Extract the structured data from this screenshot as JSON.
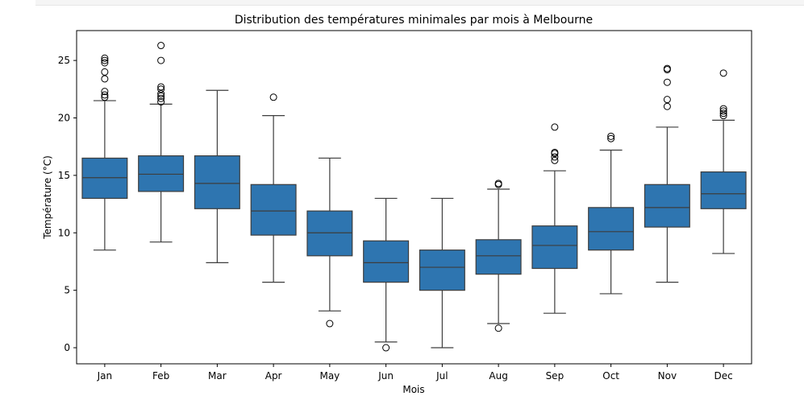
{
  "chart_data": {
    "type": "boxplot",
    "title": "Distribution des températures minimales par mois à Melbourne",
    "xlabel": "Mois",
    "ylabel": "Température (°C)",
    "ylim": [
      -1.4,
      27.6
    ],
    "yticks": [
      0,
      5,
      10,
      15,
      20,
      25
    ],
    "grid": false,
    "box_color": "#2e75b0",
    "categories": [
      "Jan",
      "Feb",
      "Mar",
      "Apr",
      "May",
      "Jun",
      "Jul",
      "Aug",
      "Sep",
      "Oct",
      "Nov",
      "Dec"
    ],
    "boxes": [
      {
        "whisker_low": 8.5,
        "q1": 13.0,
        "median": 14.8,
        "q3": 16.5,
        "whisker_high": 21.5,
        "outliers": [
          21.8,
          22.0,
          22.3,
          23.4,
          24.0,
          24.8,
          25.0,
          25.2
        ]
      },
      {
        "whisker_low": 9.2,
        "q1": 13.6,
        "median": 15.1,
        "q3": 16.7,
        "whisker_high": 21.2,
        "outliers": [
          21.4,
          21.7,
          21.9,
          22.1,
          22.5,
          22.7,
          25.0,
          26.3
        ]
      },
      {
        "whisker_low": 7.4,
        "q1": 12.1,
        "median": 14.3,
        "q3": 16.7,
        "whisker_high": 22.4,
        "outliers": []
      },
      {
        "whisker_low": 5.7,
        "q1": 9.8,
        "median": 11.9,
        "q3": 14.2,
        "whisker_high": 20.2,
        "outliers": [
          21.8
        ]
      },
      {
        "whisker_low": 3.2,
        "q1": 8.0,
        "median": 10.0,
        "q3": 11.9,
        "whisker_high": 16.5,
        "outliers": [
          2.1
        ]
      },
      {
        "whisker_low": 0.5,
        "q1": 5.7,
        "median": 7.4,
        "q3": 9.3,
        "whisker_high": 13.0,
        "outliers": [
          0.0
        ]
      },
      {
        "whisker_low": 0.0,
        "q1": 5.0,
        "median": 7.0,
        "q3": 8.5,
        "whisker_high": 13.0,
        "outliers": []
      },
      {
        "whisker_low": 2.1,
        "q1": 6.4,
        "median": 8.0,
        "q3": 9.4,
        "whisker_high": 13.8,
        "outliers": [
          1.7,
          14.2,
          14.3
        ]
      },
      {
        "whisker_low": 3.0,
        "q1": 6.9,
        "median": 8.9,
        "q3": 10.6,
        "whisker_high": 15.4,
        "outliers": [
          16.3,
          16.6,
          16.9,
          17.0,
          19.2
        ]
      },
      {
        "whisker_low": 4.7,
        "q1": 8.5,
        "median": 10.1,
        "q3": 12.2,
        "whisker_high": 17.2,
        "outliers": [
          18.2,
          18.4
        ]
      },
      {
        "whisker_low": 5.7,
        "q1": 10.5,
        "median": 12.2,
        "q3": 14.2,
        "whisker_high": 19.2,
        "outliers": [
          21.0,
          21.6,
          23.1,
          24.2,
          24.3
        ]
      },
      {
        "whisker_low": 8.2,
        "q1": 12.1,
        "median": 13.4,
        "q3": 15.3,
        "whisker_high": 19.8,
        "outliers": [
          20.2,
          20.4,
          20.6,
          20.8,
          23.9
        ]
      }
    ]
  }
}
